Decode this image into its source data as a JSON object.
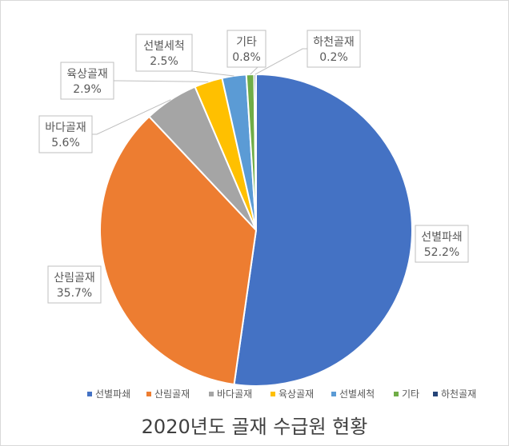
{
  "chart_data": {
    "type": "pie",
    "title": "2020년도 골재 수급원 현황",
    "categories": [
      "선별파쇄",
      "산림골재",
      "바다골재",
      "육상골재",
      "선별세척",
      "기타",
      "하천골재"
    ],
    "values": [
      52.2,
      35.7,
      5.6,
      2.9,
      2.5,
      0.8,
      0.2
    ],
    "value_labels": [
      "52.2%",
      "35.7%",
      "5.6%",
      "2.9%",
      "2.5%",
      "0.8%",
      "0.2%"
    ],
    "colors": [
      "#4472C4",
      "#ED7D31",
      "#A5A5A5",
      "#FFC000",
      "#5B9BD5",
      "#70AD47",
      "#264478"
    ],
    "legend_position": "bottom",
    "start_angle": "12 o'clock",
    "direction": "clockwise"
  }
}
